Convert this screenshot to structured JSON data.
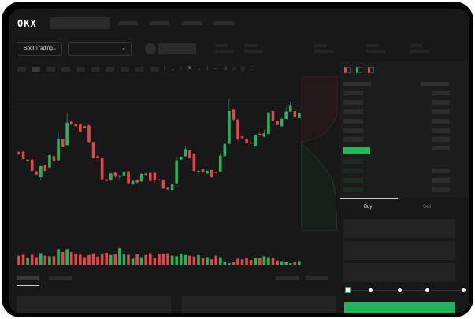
{
  "header": {
    "logo": "OKX"
  },
  "market_bar": {
    "trading_mode": "Spot Trading",
    "pair_select": ""
  },
  "order_form": {
    "buy_tab": "Buy",
    "sell_tab": "Sell",
    "leverage_steps": 5,
    "leverage_level": 0
  },
  "colors": {
    "up": "#22b55e",
    "down": "#e0474c",
    "background": "#181818",
    "accent": "#22b55e"
  },
  "chart_data": {
    "type": "candlestick",
    "candles": [
      [
        185,
        187,
        173,
        175
      ],
      [
        185,
        187,
        155,
        157
      ],
      [
        150,
        156,
        149,
        155
      ],
      [
        155,
        170,
        110,
        112
      ],
      [
        110,
        112,
        96,
        98
      ],
      [
        88,
        132,
        78,
        130
      ],
      [
        135,
        137,
        110,
        112
      ],
      [
        125,
        178,
        123,
        172
      ],
      [
        168,
        170,
        146,
        148
      ],
      [
        152,
        258,
        150,
        235
      ],
      [
        232,
        234,
        203,
        205
      ],
      [
        210,
        333,
        208,
        296
      ],
      [
        300,
        302,
        286,
        288
      ],
      [
        292,
        294,
        278,
        282
      ],
      [
        292,
        296,
        258,
        262
      ],
      [
        282,
        284,
        273,
        275
      ],
      [
        285,
        290,
        220,
        222
      ],
      [
        222,
        224,
        158,
        160
      ],
      [
        168,
        172,
        155,
        160
      ],
      [
        163,
        165,
        68,
        80
      ],
      [
        80,
        82,
        72,
        74
      ],
      [
        78,
        104,
        72,
        102
      ],
      [
        105,
        110,
        85,
        90
      ],
      [
        90,
        96,
        80,
        95
      ],
      [
        95,
        112,
        93,
        108
      ],
      [
        110,
        112,
        60,
        65
      ],
      [
        62,
        76,
        58,
        74
      ],
      [
        78,
        80,
        64,
        68
      ],
      [
        72,
        104,
        70,
        100
      ],
      [
        102,
        104,
        94,
        96
      ],
      [
        104,
        106,
        72,
        74
      ],
      [
        104,
        106,
        68,
        78
      ],
      [
        80,
        82,
        75,
        77
      ],
      [
        78,
        80,
        43,
        45
      ],
      [
        48,
        50,
        40,
        42
      ],
      [
        40,
        62,
        38,
        60
      ],
      [
        65,
        165,
        63,
        152
      ],
      [
        155,
        168,
        153,
        166
      ],
      [
        168,
        208,
        166,
        195
      ],
      [
        190,
        192,
        158,
        160
      ],
      [
        178,
        180,
        108,
        112
      ],
      [
        108,
        116,
        100,
        112
      ],
      [
        118,
        120,
        105,
        107
      ],
      [
        102,
        114,
        100,
        112
      ],
      [
        115,
        118,
        85,
        88
      ],
      [
        108,
        110,
        102,
        104
      ],
      [
        108,
        180,
        106,
        170
      ],
      [
        168,
        220,
        166,
        215
      ],
      [
        215,
        385,
        213,
        340
      ],
      [
        345,
        350,
        302,
        308
      ],
      [
        308,
        310,
        225,
        235
      ],
      [
        243,
        245,
        235,
        237
      ],
      [
        235,
        237,
        215,
        217
      ],
      [
        220,
        225,
        215,
        217
      ],
      [
        208,
        252,
        206,
        250
      ],
      [
        253,
        262,
        246,
        248
      ],
      [
        242,
        270,
        240,
        255
      ],
      [
        253,
        337,
        251,
        335
      ],
      [
        340,
        342,
        300,
        302
      ],
      [
        303,
        305,
        285,
        287
      ],
      [
        282,
        318,
        280,
        310
      ],
      [
        310,
        356,
        308,
        338
      ],
      [
        338,
        375,
        336,
        363
      ],
      [
        340,
        342,
        310,
        318
      ],
      [
        313,
        348,
        311,
        332
      ]
    ],
    "volume": [
      30,
      33,
      22,
      33,
      25,
      38,
      30,
      28,
      28,
      52,
      42,
      52,
      42,
      35,
      33,
      25,
      32,
      38,
      27,
      34,
      40,
      32,
      35,
      55,
      35,
      33,
      20,
      35,
      25,
      32,
      38,
      23,
      35,
      37,
      38,
      30,
      28,
      37,
      32,
      30,
      27,
      32,
      23,
      25,
      18,
      30,
      25,
      8,
      5,
      8,
      20,
      18,
      22,
      16,
      24,
      22,
      28,
      25,
      22,
      14,
      12,
      8,
      5,
      8,
      12
    ],
    "grid": false
  }
}
